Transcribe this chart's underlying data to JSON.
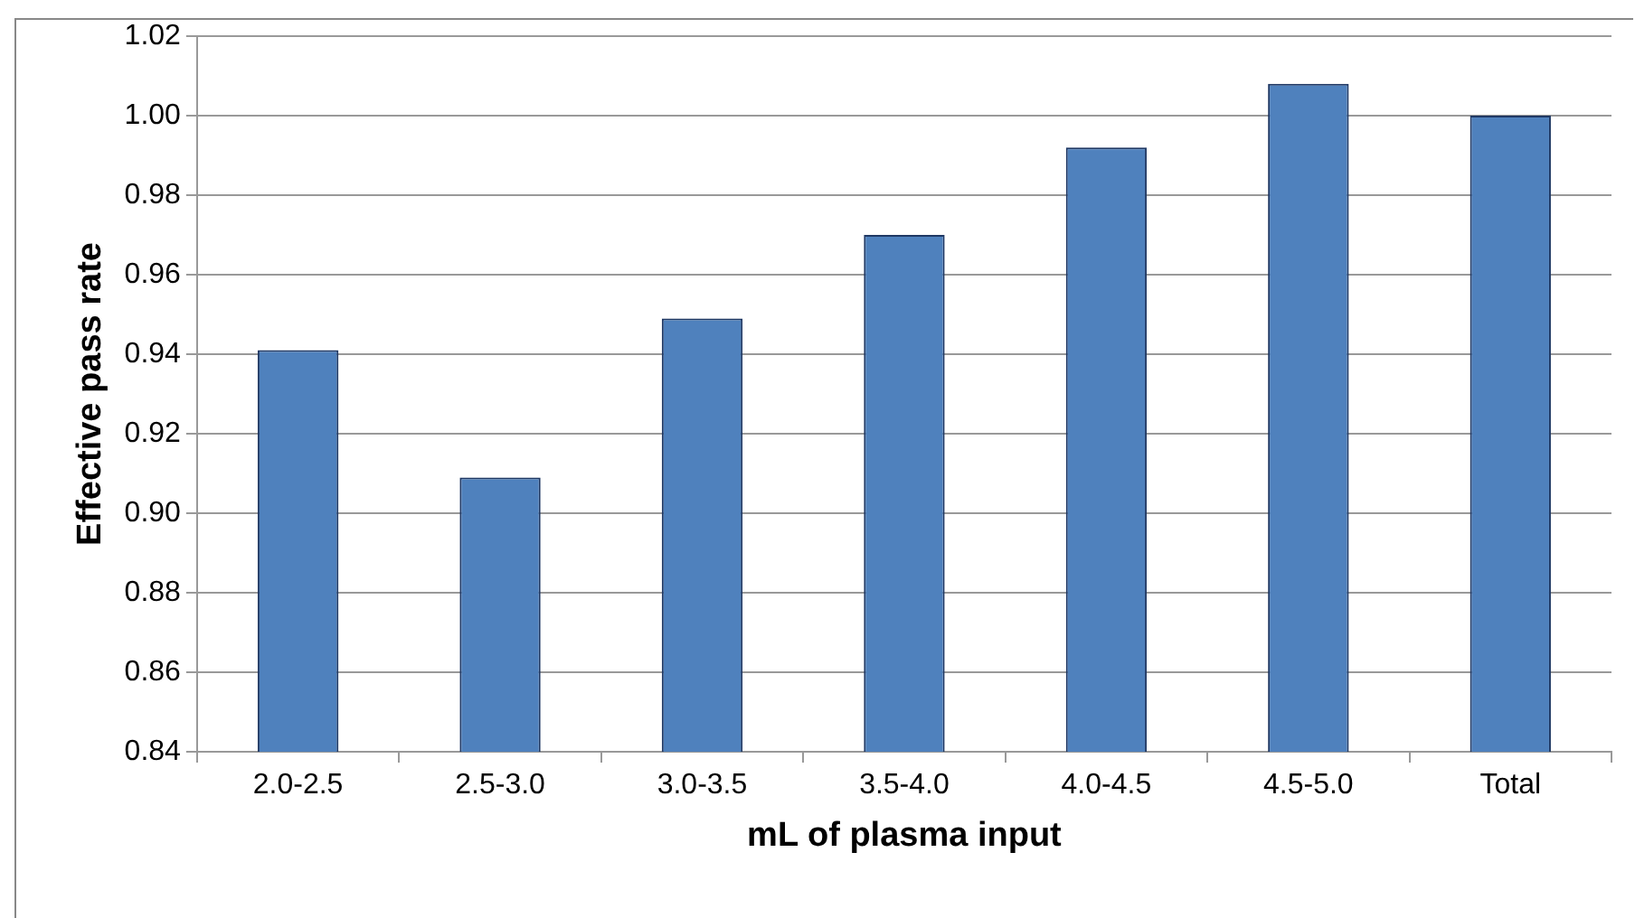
{
  "chart_data": {
    "type": "bar",
    "xlabel": "mL of plasma input",
    "ylabel": "Effective pass rate",
    "categories": [
      "2.0-2.5",
      "2.5-3.0",
      "3.0-3.5",
      "3.5-4.0",
      "4.0-4.5",
      "4.5-5.0",
      "Total"
    ],
    "values": [
      0.941,
      0.909,
      0.949,
      0.97,
      0.992,
      1.008,
      1.0
    ],
    "color": "#4f81bd",
    "ylim": [
      0.84,
      1.02
    ],
    "yticks": [
      {
        "value": 0.84,
        "label": "0.84"
      },
      {
        "value": 0.86,
        "label": "0.86"
      },
      {
        "value": 0.88,
        "label": "0.88"
      },
      {
        "value": 0.9,
        "label": "0.90"
      },
      {
        "value": 0.92,
        "label": "0.92"
      },
      {
        "value": 0.94,
        "label": "0.94"
      },
      {
        "value": 0.96,
        "label": "0.96"
      },
      {
        "value": 0.98,
        "label": "0.98"
      },
      {
        "value": 1.0,
        "label": "1.00"
      },
      {
        "value": 1.02,
        "label": "1.02"
      }
    ],
    "grid": "y",
    "legend": false
  }
}
